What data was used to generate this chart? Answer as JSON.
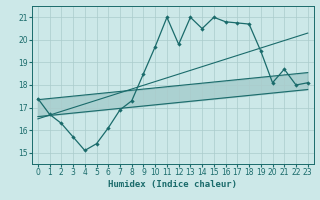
{
  "xlabel": "Humidex (Indice chaleur)",
  "xlim": [
    -0.5,
    23.5
  ],
  "ylim": [
    14.5,
    21.5
  ],
  "xticks": [
    0,
    1,
    2,
    3,
    4,
    5,
    6,
    7,
    8,
    9,
    10,
    11,
    12,
    13,
    14,
    15,
    16,
    17,
    18,
    19,
    20,
    21,
    22,
    23
  ],
  "yticks": [
    15,
    16,
    17,
    18,
    19,
    20,
    21
  ],
  "bg_color": "#cce8e8",
  "grid_color": "#aacccc",
  "line_color": "#1a6b6b",
  "line1_x": [
    0,
    1,
    2,
    3,
    4,
    5,
    6,
    7,
    8,
    9,
    10,
    11,
    12,
    13,
    14,
    15,
    16,
    17,
    18,
    19,
    20,
    21,
    22,
    23
  ],
  "line1_y": [
    17.4,
    16.7,
    16.3,
    15.7,
    15.1,
    15.4,
    16.1,
    16.9,
    17.3,
    18.5,
    19.7,
    21.0,
    19.8,
    21.0,
    20.5,
    21.0,
    20.8,
    20.75,
    20.7,
    19.5,
    18.1,
    18.7,
    18.0,
    18.1
  ],
  "line2_x": [
    0,
    23
  ],
  "line2_y": [
    16.6,
    17.8
  ],
  "line3_x": [
    0,
    23
  ],
  "line3_y": [
    17.35,
    18.55
  ],
  "line4_x": [
    0,
    23
  ],
  "line4_y": [
    16.5,
    20.3
  ]
}
